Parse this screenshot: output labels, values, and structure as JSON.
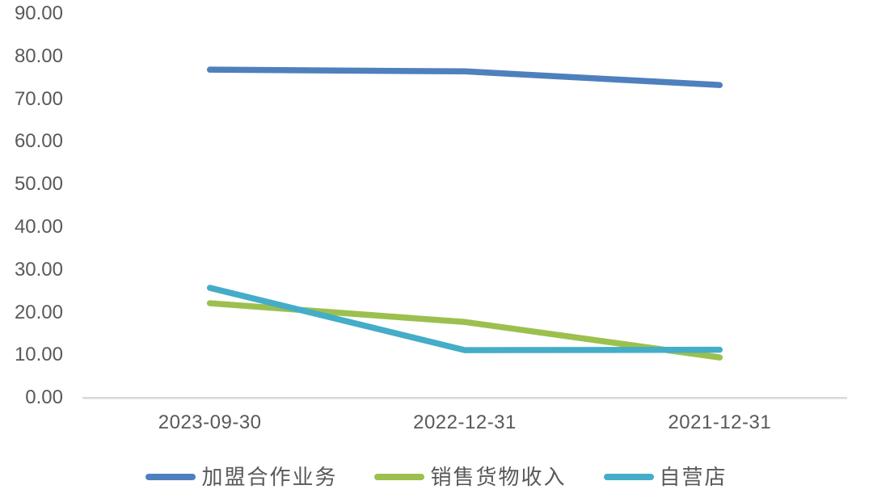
{
  "chart_data": {
    "type": "line",
    "title": "",
    "xlabel": "",
    "ylabel": "",
    "categories": [
      "2023-09-30",
      "2022-12-31",
      "2021-12-31"
    ],
    "series": [
      {
        "name": "加盟合作业务",
        "color": "#4E80BD",
        "values": [
          76.9,
          76.5,
          73.3
        ]
      },
      {
        "name": "销售货物收入",
        "color": "#9CC04E",
        "values": [
          22.2,
          17.8,
          9.5
        ]
      },
      {
        "name": "自营店",
        "color": "#44ADC7",
        "values": [
          25.8,
          11.2,
          11.3
        ]
      }
    ],
    "ylim": [
      0,
      90
    ],
    "y_tick_step": 10,
    "y_tick_labels": [
      "90.00",
      "80.00",
      "70.00",
      "60.00",
      "50.00",
      "40.00",
      "30.00",
      "20.00",
      "10.00",
      "0.00"
    ],
    "grid": false,
    "legend_position": "bottom"
  },
  "colors": {
    "background": "#FFFFFF",
    "axis_line": "#D9D9D9",
    "tick_text": "#595959"
  }
}
